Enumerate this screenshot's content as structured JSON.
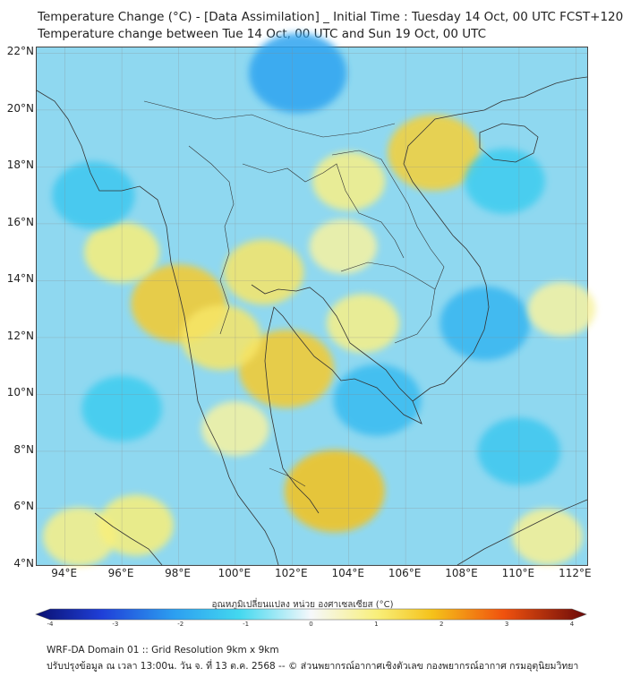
{
  "header": {
    "title_line1": "Temperature Change (°C) - [Data Assimilation] _ Initial Time : Tuesday 14 Oct, 00 UTC FCST+120",
    "title_line2": "Temperature change between Tue 14 Oct, 00 UTC and Sun 19 Oct, 00 UTC"
  },
  "map": {
    "lat_labels": [
      "22°N",
      "20°N",
      "18°N",
      "16°N",
      "14°N",
      "12°N",
      "10°N",
      "8°N",
      "6°N",
      "4°N"
    ],
    "lon_labels": [
      "94°E",
      "96°E",
      "98°E",
      "100°E",
      "102°E",
      "104°E",
      "106°E",
      "108°E",
      "110°E",
      "112°E"
    ],
    "lat_range": [
      4,
      22.2
    ],
    "lon_range": [
      93,
      112.4
    ],
    "background_color": "#8fd8f0",
    "anomaly_blobs": [
      {
        "lon": 98.0,
        "lat": 13.2,
        "value": 1.8
      },
      {
        "lon": 101.8,
        "lat": 10.9,
        "value": 1.8
      },
      {
        "lon": 103.5,
        "lat": 6.6,
        "value": 2.0
      },
      {
        "lon": 107.0,
        "lat": 18.5,
        "value": 1.7
      },
      {
        "lon": 101.0,
        "lat": 14.3,
        "value": 1.2
      },
      {
        "lon": 99.5,
        "lat": 12.0,
        "value": 1.2
      },
      {
        "lon": 104.5,
        "lat": 12.5,
        "value": 0.9
      },
      {
        "lon": 96.0,
        "lat": 15.0,
        "value": 1.0
      },
      {
        "lon": 94.5,
        "lat": 5.0,
        "value": 0.9
      },
      {
        "lon": 96.5,
        "lat": 5.4,
        "value": 1.0
      },
      {
        "lon": 104.0,
        "lat": 17.5,
        "value": 0.9
      },
      {
        "lon": 103.8,
        "lat": 15.2,
        "value": 0.7
      },
      {
        "lon": 105.0,
        "lat": 9.8,
        "value": -1.5
      },
      {
        "lon": 102.2,
        "lat": 21.3,
        "value": -1.9
      },
      {
        "lon": 108.8,
        "lat": 12.5,
        "value": -1.6
      },
      {
        "lon": 95.0,
        "lat": 17.0,
        "value": -1.3
      },
      {
        "lon": 110.0,
        "lat": 8.0,
        "value": -1.3
      },
      {
        "lon": 109.5,
        "lat": 17.5,
        "value": -1.2
      },
      {
        "lon": 96.0,
        "lat": 9.5,
        "value": -1.2
      },
      {
        "lon": 100.0,
        "lat": 8.8,
        "value": 0.7
      },
      {
        "lon": 111.5,
        "lat": 13.0,
        "value": 0.7
      },
      {
        "lon": 111.0,
        "lat": 5.0,
        "value": 0.8
      }
    ]
  },
  "colorbar": {
    "title": "อุณหภูมิเปลี่ยนแปลง หน่วย องศาเซลเซียส (°C)",
    "ticks": [
      "-4",
      "-3",
      "-2",
      "-1",
      "0",
      "1",
      "2",
      "3",
      "4"
    ],
    "range": [
      -4,
      4
    ]
  },
  "footer": {
    "line1": "WRF-DA Domain 01 :: Grid Resolution 9km x 9km",
    "line2": "ปรับปรุงข้อมูล ณ เวลา 13:00น. วัน จ. ที่ 13 ต.ค. 2568 -- © ส่วนพยากรณ์อากาศเชิงตัวเลข กองพยากรณ์อากาศ กรมอุตุนิยมวิทยา"
  }
}
